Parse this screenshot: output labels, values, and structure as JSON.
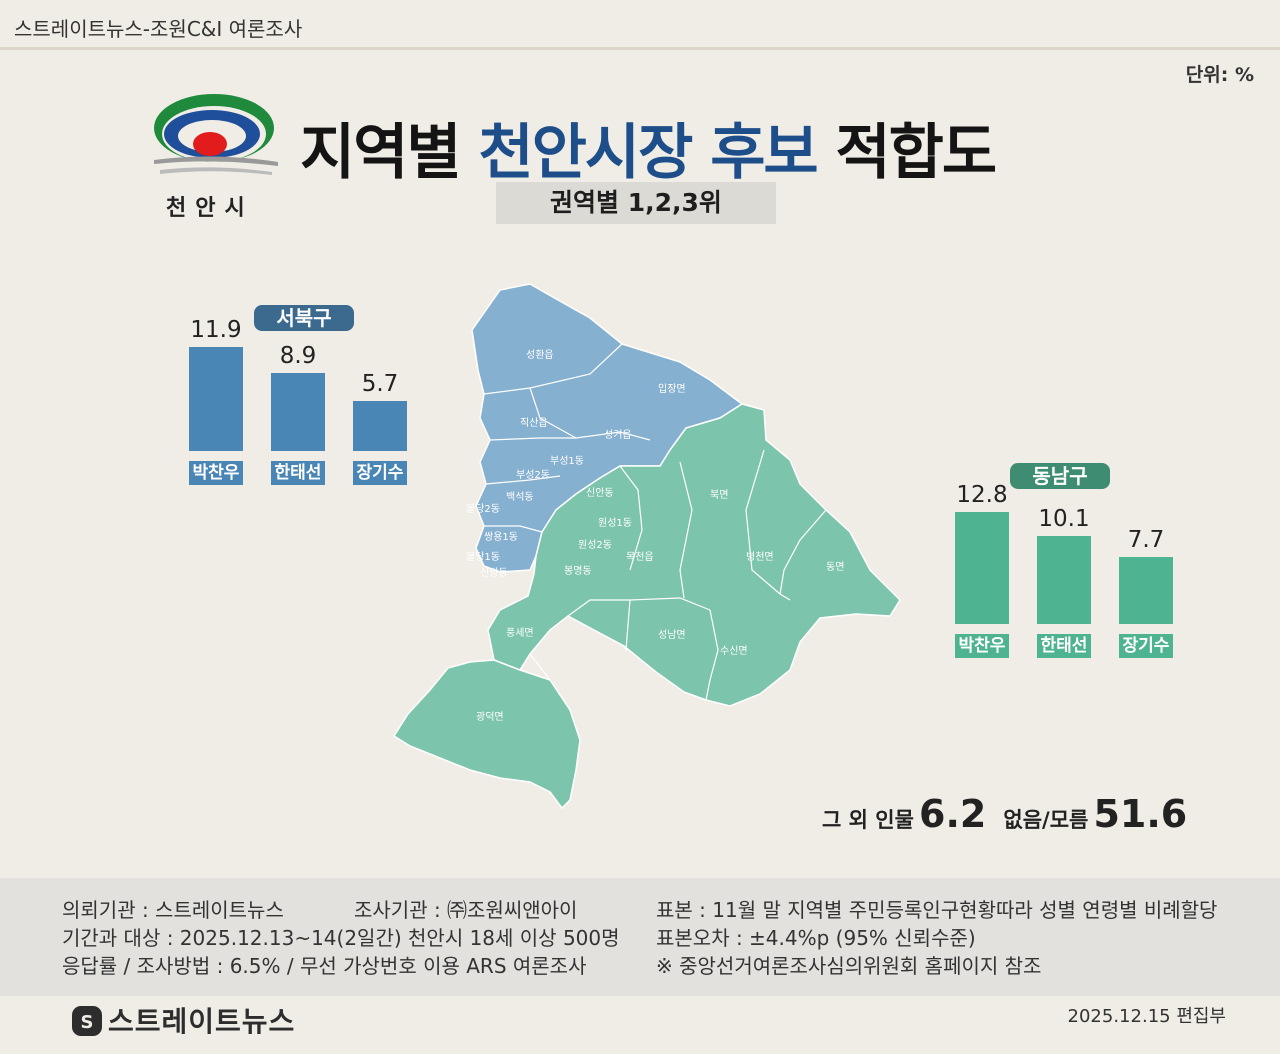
{
  "header": {
    "title": "스트레이트뉴스-조원C&I 여론조사"
  },
  "unit": "단위: %",
  "logo": {
    "text": "천안시"
  },
  "title": {
    "part1": "지역별",
    "highlight": "천안시장 후보",
    "part2": "적합도"
  },
  "subtitle": "권역별 1,2,3위",
  "colors": {
    "northwest": "#4a86b5",
    "northwest_label": "#3b6a8e",
    "southeast": "#4eb391",
    "southeast_label": "#3e8c72",
    "title_highlight": "#1d4e8a"
  },
  "chart_data": [
    {
      "type": "bar",
      "title": "서북구",
      "categories": [
        "박찬우",
        "한태선",
        "장기수"
      ],
      "values": [
        11.9,
        8.9,
        5.7
      ],
      "ylim": [
        0,
        12.8
      ]
    },
    {
      "type": "bar",
      "title": "동남구",
      "categories": [
        "박찬우",
        "한태선",
        "장기수"
      ],
      "values": [
        12.8,
        10.1,
        7.7
      ],
      "ylim": [
        0,
        12.8
      ]
    }
  ],
  "map": {
    "northwest_labels": [
      "성환읍",
      "입장면",
      "직산읍",
      "성거읍",
      "부성1동",
      "부성2동",
      "백석동",
      "불당2동",
      "불당1동",
      "쌍용1동",
      "신방동"
    ],
    "southeast_labels": [
      "신안동",
      "원성1동",
      "원성2동",
      "목천읍",
      "북면",
      "병천면",
      "동면",
      "봉명동",
      "풍세면",
      "성남면",
      "수신면",
      "광덕면"
    ]
  },
  "others": {
    "label1": "그 외 인물",
    "value1": "6.2",
    "label2": "없음/모름",
    "value2": "51.6"
  },
  "footer": {
    "client": "의뢰기관 : 스트레이트뉴스",
    "agency": "조사기관 : ㈜조원씨앤아이",
    "period": "기간과 대상 : 2025.12.13~14(2일간)  천안시  18세 이상 500명",
    "method": "응답률 / 조사방법 : 6.5% / 무선 가상번호 이용 ARS 여론조사",
    "sample": "표본 : 11월 말 지역별 주민등록인구현황따라 성별 연령별 비례할당",
    "error": "표본오차 : ±4.4%p (95% 신뢰수준)",
    "note": "※ 중앙선거여론조사심의위원회 홈페이지 참조"
  },
  "brand": "스트레이트뉴스",
  "date": "2025.12.15 편집부"
}
